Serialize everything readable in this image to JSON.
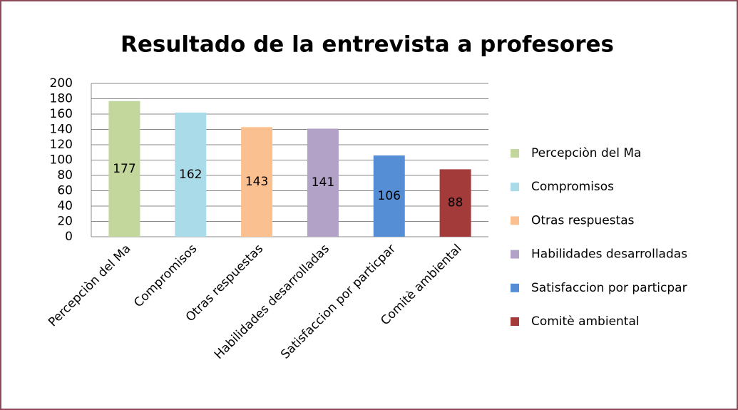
{
  "chart_data": {
    "type": "bar",
    "title": "Resultado de la entrevista a profesores",
    "categories": [
      "Percepciòn del Ma",
      "Compromisos",
      "Otras respuestas",
      "Habilidades desarrolladas",
      "Satisfaccion por particpar",
      "Comitè ambiental"
    ],
    "values": [
      177,
      162,
      143,
      141,
      106,
      88
    ],
    "colors": [
      "#c3d69b",
      "#a9dbe8",
      "#fac090",
      "#b3a2c7",
      "#558ed5",
      "#a33b3b"
    ],
    "ylim": [
      0,
      200
    ],
    "yticks": [
      0,
      20,
      40,
      60,
      80,
      100,
      120,
      140,
      160,
      180,
      200
    ],
    "grid": true,
    "legend": "right",
    "data_labels": true
  }
}
